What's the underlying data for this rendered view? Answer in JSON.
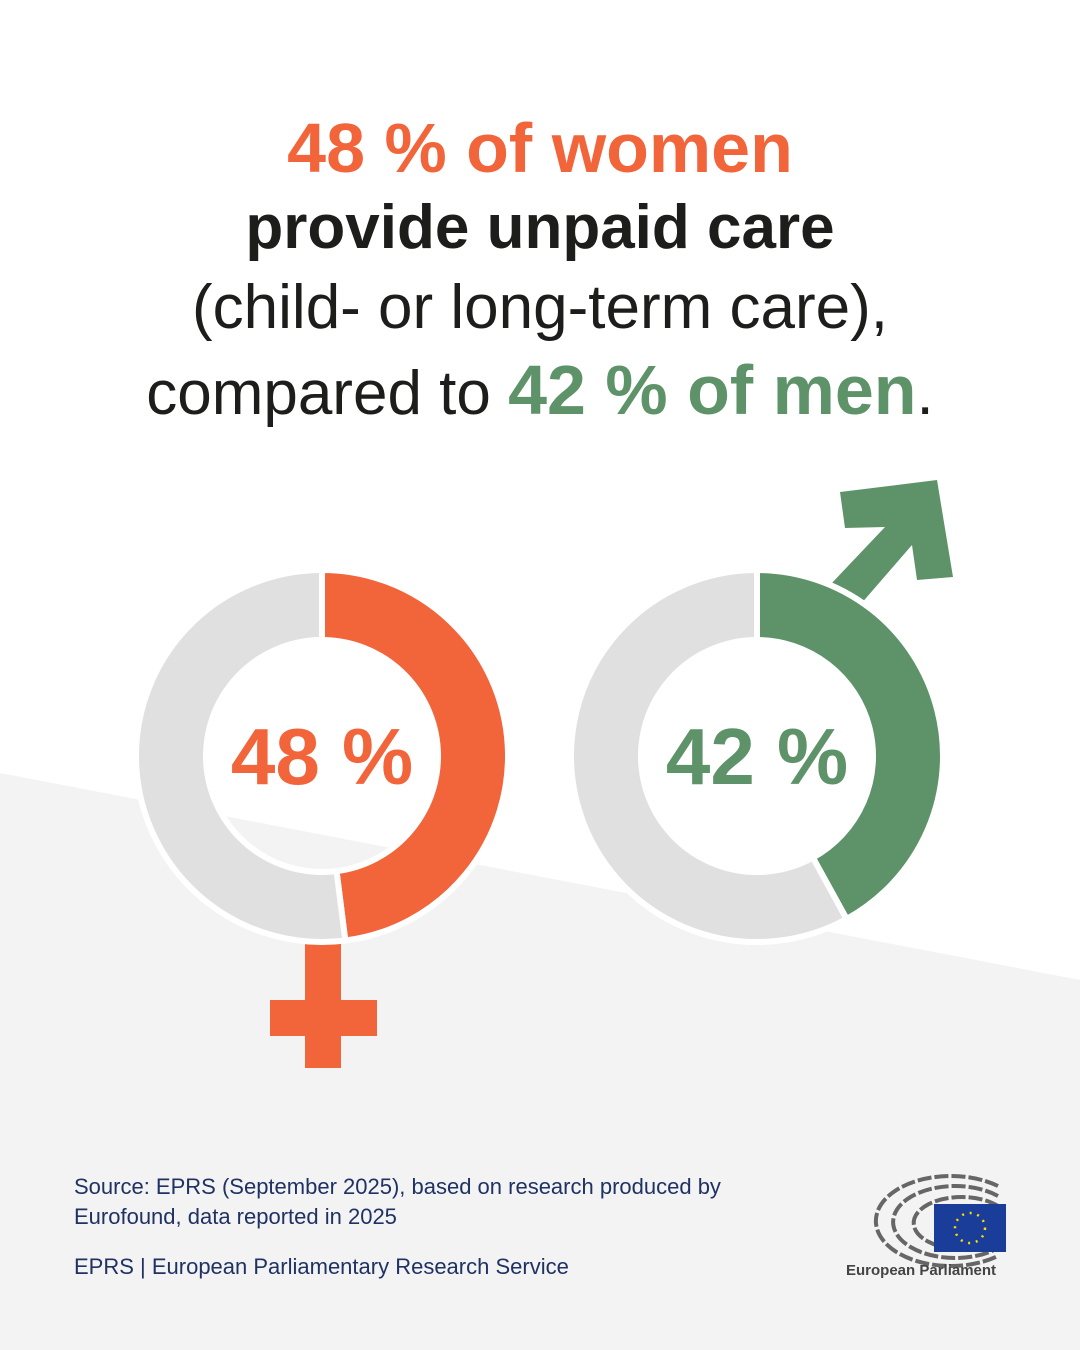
{
  "headline": {
    "line1": "48 % of women",
    "line2": "provide unpaid care",
    "line3": "(child- or long-term care),",
    "line4_prefix": "compared to ",
    "line4_highlight": "42 % of men",
    "line4_suffix": "."
  },
  "chart_data": [
    {
      "type": "pie",
      "variant": "donut",
      "name": "women",
      "values": [
        48,
        52
      ],
      "label": "48 %",
      "colors": [
        "#f2643a",
        "#e0e0e0"
      ],
      "symbol": "female"
    },
    {
      "type": "pie",
      "variant": "donut",
      "name": "men",
      "values": [
        42,
        58
      ],
      "label": "42 %",
      "colors": [
        "#5e9369",
        "#e0e0e0"
      ],
      "symbol": "male"
    }
  ],
  "footer": {
    "source": "Source: EPRS (September 2025), based on research produced by Eurofound, data reported in 2025",
    "service": "EPRS | European Parliamentary Research Service",
    "logo_text": "European Parliament"
  },
  "colors": {
    "women": "#f2643a",
    "men": "#5e9369",
    "remainder": "#e0e0e0",
    "footer_text": "#1f3263",
    "background_band": "#f3f3f3"
  }
}
